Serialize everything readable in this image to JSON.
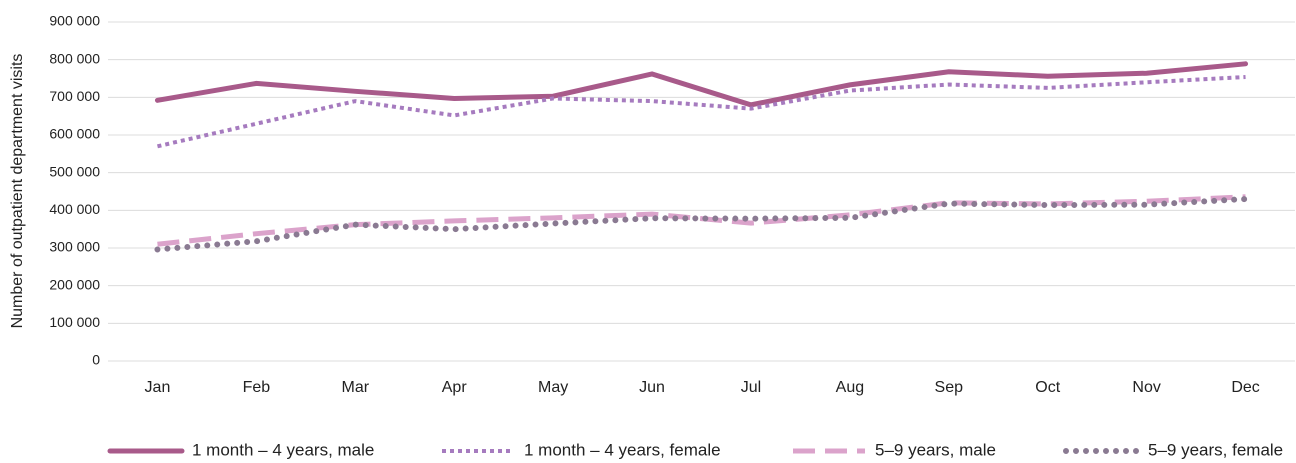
{
  "chart_data": {
    "type": "line",
    "y_label": "Number of outpatient department visits",
    "categories": [
      "Jan",
      "Feb",
      "Mar",
      "Apr",
      "May",
      "Jun",
      "Jul",
      "Aug",
      "Sep",
      "Oct",
      "Nov",
      "Dec"
    ],
    "series": [
      {
        "name": "1 month – 4 years, male",
        "color": "#a85a8a",
        "style": "solid",
        "values": [
          692000,
          737000,
          716000,
          697000,
          703000,
          762000,
          680000,
          733000,
          768000,
          756000,
          764000,
          789000
        ]
      },
      {
        "name": "1 month – 4 years, female",
        "color": "#a67bbf",
        "style": "dotted",
        "values": [
          570000,
          630000,
          690000,
          652000,
          697000,
          690000,
          670000,
          718000,
          734000,
          725000,
          740000,
          754000
        ]
      },
      {
        "name": "5–9 years, male",
        "color": "#dba3cb",
        "style": "dashed",
        "values": [
          310000,
          338000,
          362000,
          372000,
          380000,
          390000,
          366000,
          388000,
          420000,
          417000,
          424000,
          436000
        ]
      },
      {
        "name": "5–9 years, female",
        "color": "#8a7a92",
        "style": "round-dots",
        "values": [
          296000,
          318000,
          362000,
          350000,
          365000,
          379000,
          378000,
          380000,
          418000,
          414000,
          415000,
          430000
        ]
      }
    ],
    "ylim": [
      0,
      900000
    ],
    "yticks": [
      0,
      {
        "value": 100000,
        "label": "100 000"
      },
      {
        "value": 200000,
        "label": "200 000"
      },
      {
        "value": 300000,
        "label": "300 000"
      },
      {
        "value": 400000,
        "label": "400 000"
      },
      {
        "value": 500000,
        "label": "500 000"
      },
      {
        "value": 600000,
        "label": "600 000"
      },
      {
        "value": 700000,
        "label": "700 000"
      },
      {
        "value": 800000,
        "label": "800 000"
      },
      {
        "value": 900000,
        "label": "900 000"
      }
    ],
    "grid": true,
    "legend": "bottom"
  }
}
